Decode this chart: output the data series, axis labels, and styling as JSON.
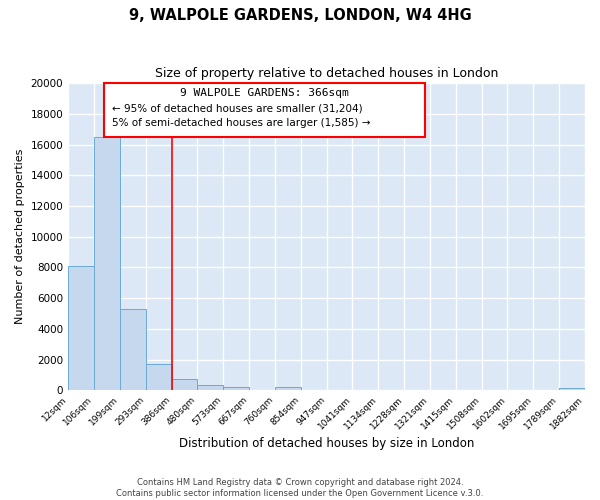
{
  "title": "9, WALPOLE GARDENS, LONDON, W4 4HG",
  "subtitle": "Size of property relative to detached houses in London",
  "xlabel": "Distribution of detached houses by size in London",
  "ylabel": "Number of detached properties",
  "bar_color": "#c5d8ee",
  "bar_edge_color": "#6aaad4",
  "background_color": "#dce8f5",
  "grid_color": "#ffffff",
  "bins": [
    "12sqm",
    "106sqm",
    "199sqm",
    "293sqm",
    "386sqm",
    "480sqm",
    "573sqm",
    "667sqm",
    "760sqm",
    "854sqm",
    "947sqm",
    "1041sqm",
    "1134sqm",
    "1228sqm",
    "1321sqm",
    "1415sqm",
    "1508sqm",
    "1602sqm",
    "1695sqm",
    "1789sqm",
    "1882sqm"
  ],
  "bar_vals": [
    8100,
    16500,
    5300,
    1750,
    750,
    350,
    250,
    0,
    200,
    0,
    0,
    0,
    0,
    0,
    0,
    0,
    0,
    0,
    0,
    150
  ],
  "red_line_label": "9 WALPOLE GARDENS: 366sqm",
  "annotation_line1": "← 95% of detached houses are smaller (31,204)",
  "annotation_line2": "5% of semi-detached houses are larger (1,585) →",
  "ylim": [
    0,
    20000
  ],
  "yticks": [
    0,
    2000,
    4000,
    6000,
    8000,
    10000,
    12000,
    14000,
    16000,
    18000,
    20000
  ],
  "footer1": "Contains HM Land Registry data © Crown copyright and database right 2024.",
  "footer2": "Contains public sector information licensed under the Open Government Licence v.3.0."
}
